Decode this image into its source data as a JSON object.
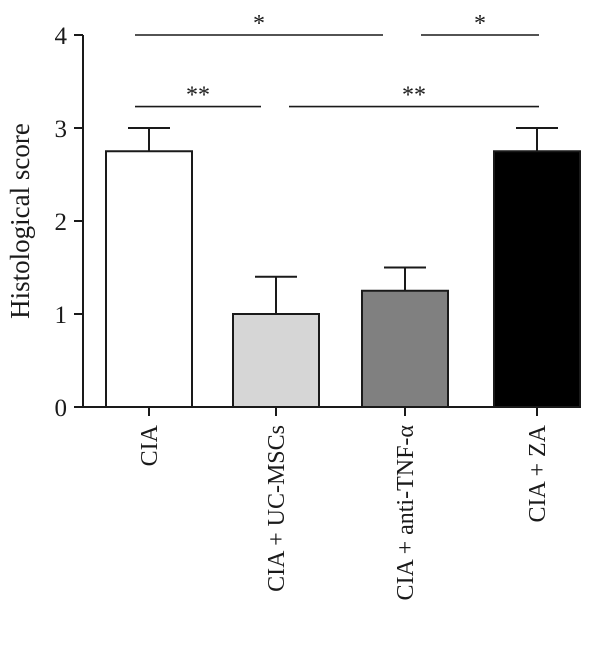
{
  "chart_data": {
    "type": "bar",
    "ylabel": "Histological score",
    "xlabel": "",
    "ylim": [
      0,
      4
    ],
    "yticks": [
      "0",
      "1",
      "2",
      "3",
      "4"
    ],
    "grid": false,
    "categories": [
      "CIA",
      "CIA + UC-MSCs",
      "CIA + anti-TNF-α",
      "CIA + ZA"
    ],
    "values": [
      2.75,
      1.0,
      1.25,
      2.75
    ],
    "errors": [
      0.25,
      0.4,
      0.25,
      0.25
    ],
    "bar_colors": [
      "#ffffff",
      "#d6d6d6",
      "#808080",
      "#000000"
    ],
    "significance": [
      {
        "from": 0,
        "to": 2,
        "label": "*",
        "y": 4.0
      },
      {
        "from": 2,
        "to": 3,
        "label": "*",
        "y": 4.0
      },
      {
        "from": 0,
        "to": 1,
        "label": "**",
        "y": 3.23
      },
      {
        "from": 1,
        "to": 3,
        "label": "**",
        "y": 3.23
      }
    ]
  }
}
